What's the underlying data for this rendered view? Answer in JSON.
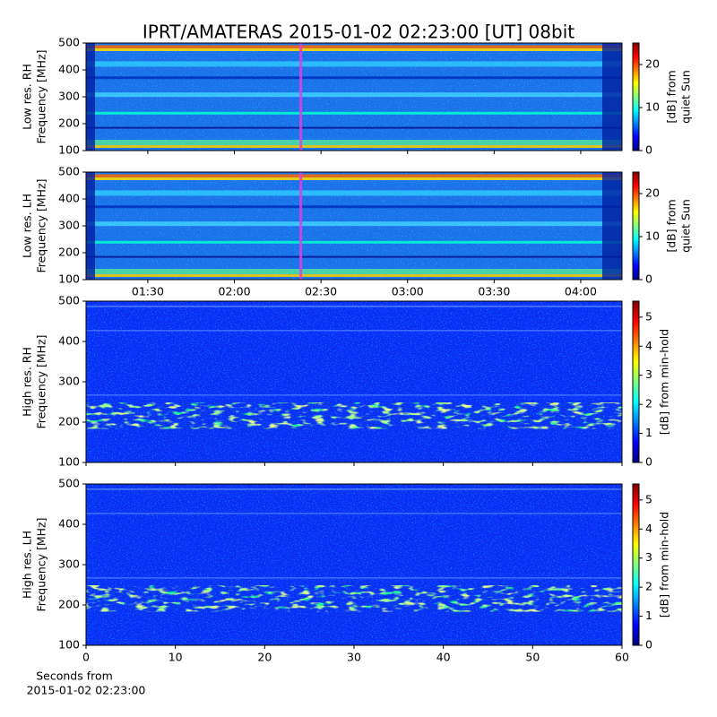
{
  "chart_data": [
    {
      "type": "spectrogram",
      "title": "IPRT/AMATERAS 2015-01-02 02:23:00 [UT]   08bit",
      "ylabel": [
        "Low res. RH",
        "Frequency [MHz]"
      ],
      "ylim": [
        100,
        500
      ],
      "yticks": [
        100,
        200,
        300,
        400,
        500
      ],
      "xlim": [
        68.6,
        254.3
      ],
      "sharex": true,
      "vline": 143,
      "vline_color": "#e040e0",
      "colorbar_label": [
        "[dB] from",
        "quiet Sun"
      ],
      "clim": [
        0,
        25
      ],
      "cticks": [
        0,
        10,
        20
      ]
    },
    {
      "type": "spectrogram",
      "ylabel": [
        "Low res. LH",
        "Frequency [MHz]"
      ],
      "ylim": [
        100,
        500
      ],
      "yticks": [
        100,
        200,
        300,
        400,
        500
      ],
      "xlim": [
        68.6,
        254.3
      ],
      "vline": 143,
      "vline_color": "#e040e0",
      "xticks": [
        {
          "value": 90,
          "label": "01:30"
        },
        {
          "value": 120,
          "label": "02:00"
        },
        {
          "value": 150,
          "label": "02:30"
        },
        {
          "value": 180,
          "label": "03:00"
        },
        {
          "value": 210,
          "label": "03:30"
        },
        {
          "value": 240,
          "label": "04:00"
        }
      ],
      "colorbar_label": [
        "[dB] from",
        "quiet Sun"
      ],
      "clim": [
        0,
        25
      ],
      "cticks": [
        0,
        10,
        20
      ]
    },
    {
      "type": "spectrogram",
      "ylabel": [
        "High res. RH",
        "Frequency [MHz]"
      ],
      "ylim": [
        100,
        500
      ],
      "yticks": [
        100,
        200,
        300,
        400,
        500
      ],
      "xlim": [
        0,
        60
      ],
      "sharex": true,
      "colorbar_label": [
        "[dB] from min-hold"
      ],
      "clim": [
        0,
        5.55
      ],
      "cticks": [
        0,
        1,
        2,
        3,
        4,
        5
      ]
    },
    {
      "type": "spectrogram",
      "ylabel": [
        "High res. LH",
        "Frequency [MHz]"
      ],
      "ylim": [
        100,
        500
      ],
      "yticks": [
        100,
        200,
        300,
        400,
        500
      ],
      "xlim": [
        0,
        60
      ],
      "xticks": [
        0,
        10,
        20,
        30,
        40,
        50,
        60
      ],
      "xlabel": [
        "Seconds from",
        "2015-01-02 02:23:00"
      ],
      "colorbar_label": [
        "[dB] from min-hold"
      ],
      "clim": [
        0,
        5.55
      ],
      "cticks": [
        0,
        1,
        2,
        3,
        4,
        5
      ]
    }
  ]
}
